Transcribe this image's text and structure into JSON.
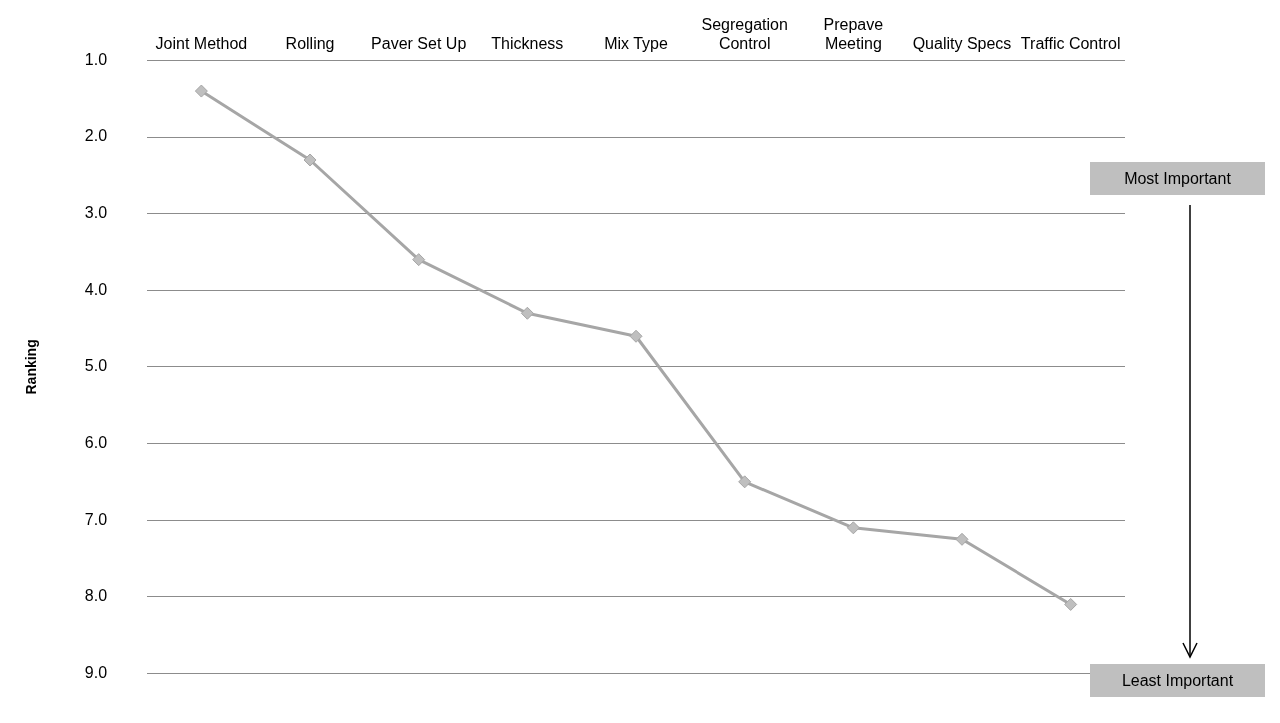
{
  "chart_data": {
    "type": "line",
    "ylabel": "Ranking",
    "categories": [
      "Joint Method",
      "Rolling",
      "Paver Set Up",
      "Thickness",
      "Mix Type",
      "Segregation Control",
      "Prepave Meeting",
      "Quality Specs",
      "Traffic Control"
    ],
    "series": [
      {
        "color": "#a6a6a6",
        "values": [
          1.4,
          2.3,
          3.6,
          4.3,
          4.6,
          6.5,
          7.1,
          7.25,
          8.1
        ]
      }
    ],
    "ylim": [
      9,
      1
    ],
    "yticks": [
      {
        "value": 1,
        "label": "1.0"
      },
      {
        "value": 2,
        "label": "2.0"
      },
      {
        "value": 3,
        "label": "3.0"
      },
      {
        "value": 4,
        "label": "4.0"
      },
      {
        "value": 5,
        "label": "5.0"
      },
      {
        "value": 6,
        "label": "6.0"
      },
      {
        "value": 7,
        "label": "7.0"
      },
      {
        "value": 8,
        "label": "8.0"
      },
      {
        "value": 9,
        "label": "9.0"
      }
    ],
    "grid": "y",
    "marker": "diamond",
    "line_style": "solid",
    "legend": false,
    "annotations": [
      "Most Important",
      "Least Important"
    ]
  }
}
